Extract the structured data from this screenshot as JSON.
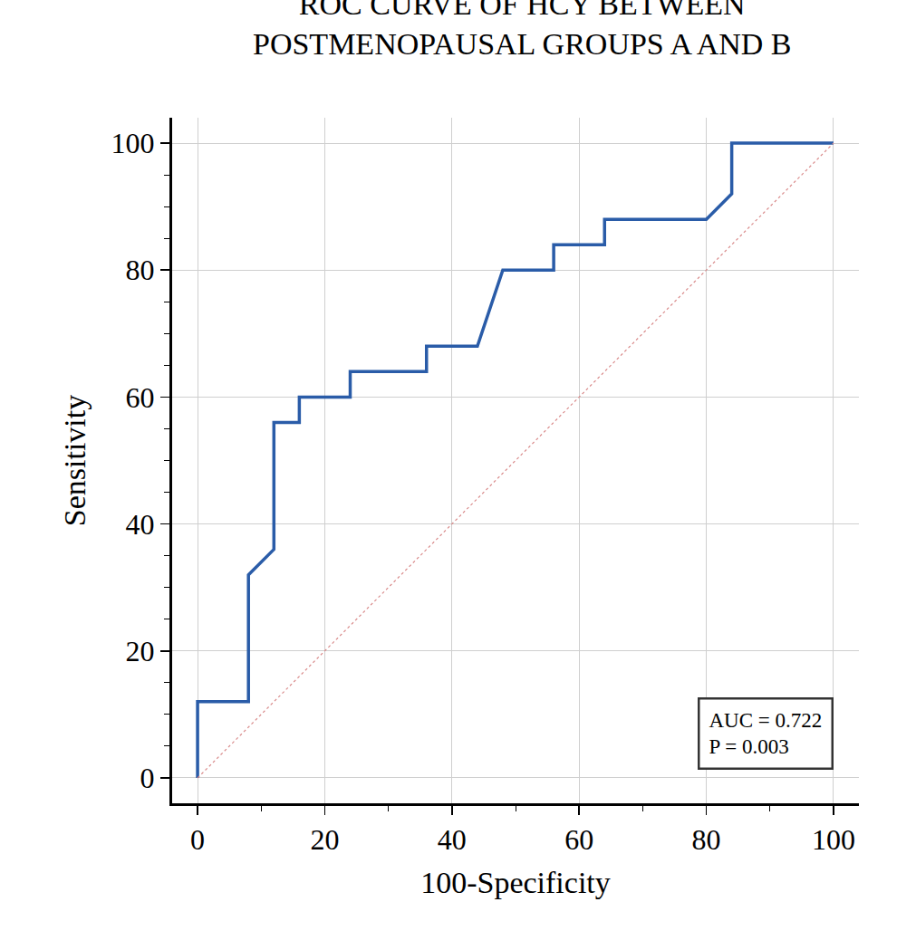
{
  "chart_data": {
    "type": "line",
    "title": [
      "ROC CURVE OF HCY BETWEEN",
      "POSTMENOPAUSAL GROUPS A AND B"
    ],
    "x_label": "100-Specificity",
    "y_label": "Sensitivity",
    "series": [
      {
        "x": [
          0,
          0,
          8,
          8,
          12,
          12,
          16,
          16,
          24,
          24,
          36,
          36,
          44,
          48,
          56,
          56,
          64,
          64,
          80,
          84,
          84,
          100
        ],
        "values": [
          0,
          12,
          12,
          32,
          36,
          56,
          56,
          60,
          60,
          64,
          64,
          68,
          68,
          80,
          80,
          84,
          84,
          88,
          88,
          92,
          100,
          100
        ],
        "color": "#2a5ca8",
        "line_style": "solid"
      },
      {
        "x": [
          0,
          100
        ],
        "values": [
          0,
          100
        ],
        "color": "#d98a8a",
        "line_style": "dotted"
      }
    ],
    "xlim": [
      -4,
      104
    ],
    "ylim": [
      -4,
      104
    ],
    "xticks": [
      0,
      20,
      40,
      60,
      80,
      100
    ],
    "yticks": [
      0,
      20,
      40,
      60,
      80,
      100
    ],
    "grid": true,
    "annotations": [
      "AUC = 0.722",
      "P = 0.003"
    ]
  }
}
